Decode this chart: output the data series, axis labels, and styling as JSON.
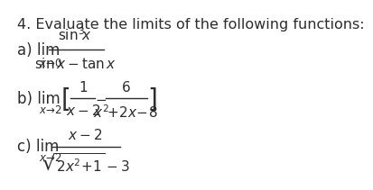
{
  "title": "4. Evaluate the limits of the following functions:",
  "background_color": "#ffffff",
  "text_color": "#2d2d2d",
  "title_fontsize": 11.5,
  "label_fontsize": 12,
  "math_fontsize": 11
}
